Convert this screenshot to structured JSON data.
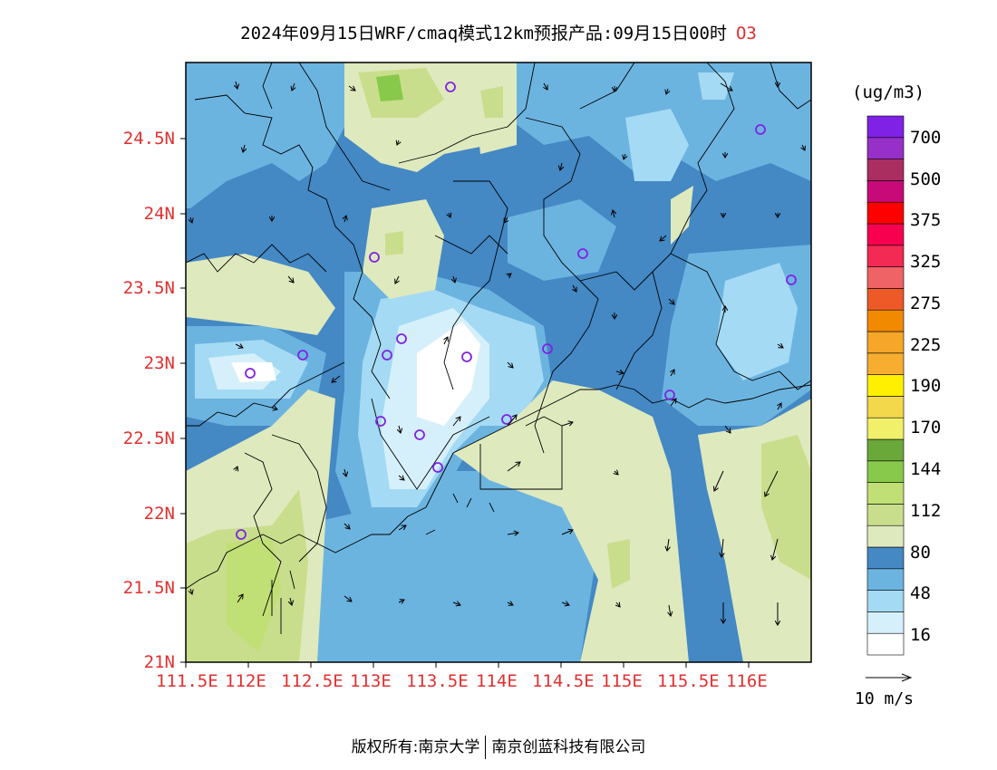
{
  "title": {
    "main": "2024年09月15日WRF/cmaq模式12km预报产品:09月15日00时",
    "species": "O3"
  },
  "map": {
    "lat_labels": [
      "24.5N",
      "24N",
      "23.5N",
      "23N",
      "22.5N",
      "22N",
      "21.5N",
      "21N"
    ],
    "lon_labels": [
      "111.5E",
      "112E",
      "112.5E",
      "113E",
      "113.5E",
      "114E",
      "114.5E",
      "115E",
      "115.5E",
      "116E"
    ]
  },
  "colorbar": {
    "unit": "(ug/m3)",
    "labels": [
      "700",
      "500",
      "375",
      "325",
      "275",
      "225",
      "190",
      "170",
      "144",
      "112",
      "80",
      "48",
      "16"
    ],
    "colors": [
      "#ffffff",
      "#d6f0fb",
      "#a4daf3",
      "#6cb4e0",
      "#4488c4",
      "#dfe9be",
      "#c9de8c",
      "#c0df75",
      "#88c84a",
      "#6aa83a",
      "#f0f06a",
      "#f2d84a",
      "#ffef00",
      "#f6ad30",
      "#f6a628",
      "#f18a00",
      "#ed5a28",
      "#ef6266",
      "#f22a54",
      "#f80050",
      "#ff0000",
      "#c80a78",
      "#aa2e60",
      "#9630c8",
      "#7f22e6"
    ]
  },
  "wind_vector": {
    "label": "10 m/s"
  },
  "copyright": {
    "left": "版权所有:南京大学",
    "right": "南京创蓝科技有限公司"
  }
}
